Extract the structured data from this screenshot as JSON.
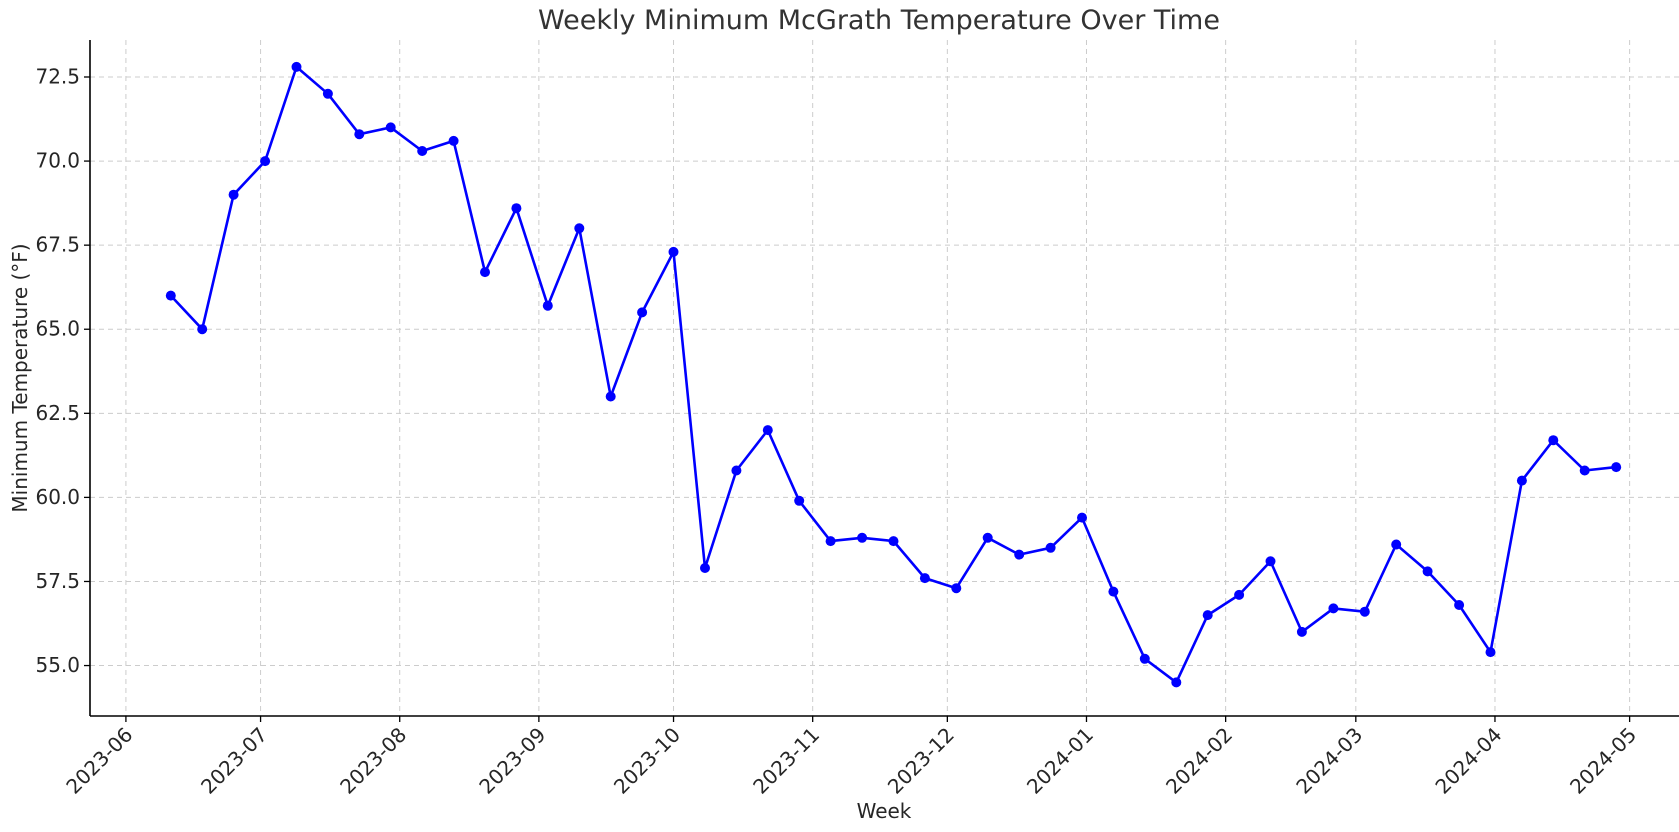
{
  "chart_data": {
    "type": "line",
    "title": "Weekly Minimum McGrath Temperature Over Time",
    "xlabel": "Week",
    "ylabel": "Minimum Temperature (°F)",
    "xlim": [
      "2023-05-24",
      "2024-05-12"
    ],
    "ylim": [
      53.5,
      73.6
    ],
    "grid": true,
    "legend": "none",
    "colors": {
      "series": "#0000ff",
      "grid": "#cccccc",
      "axes": "#000000"
    },
    "x_ticks": [
      "2023-06-01",
      "2023-07-01",
      "2023-08-01",
      "2023-09-01",
      "2023-10-01",
      "2023-11-01",
      "2023-12-01",
      "2024-01-01",
      "2024-02-01",
      "2024-03-01",
      "2024-04-01",
      "2024-05-01"
    ],
    "x_tick_labels": [
      "2023-06",
      "2023-07",
      "2023-08",
      "2023-09",
      "2023-10",
      "2023-11",
      "2023-12",
      "2024-01",
      "2024-02",
      "2024-03",
      "2024-04",
      "2024-05"
    ],
    "y_ticks": [
      55.0,
      57.5,
      60.0,
      62.5,
      65.0,
      67.5,
      70.0,
      72.5
    ],
    "y_tick_labels": [
      "55.0",
      "57.5",
      "60.0",
      "62.5",
      "65.0",
      "67.5",
      "70.0",
      "72.5"
    ],
    "series": [
      {
        "x": [
          "2023-06-11",
          "2023-06-18",
          "2023-06-25",
          "2023-07-02",
          "2023-07-09",
          "2023-07-16",
          "2023-07-23",
          "2023-07-30",
          "2023-08-06",
          "2023-08-13",
          "2023-08-20",
          "2023-08-27",
          "2023-09-03",
          "2023-09-10",
          "2023-09-17",
          "2023-09-24",
          "2023-10-01",
          "2023-10-08",
          "2023-10-15",
          "2023-10-22",
          "2023-10-29",
          "2023-11-05",
          "2023-11-12",
          "2023-11-19",
          "2023-11-26",
          "2023-12-03",
          "2023-12-10",
          "2023-12-17",
          "2023-12-24",
          "2023-12-31",
          "2024-01-07",
          "2024-01-14",
          "2024-01-21",
          "2024-01-28",
          "2024-02-04",
          "2024-02-11",
          "2024-02-18",
          "2024-02-25",
          "2024-03-03",
          "2024-03-10",
          "2024-03-17",
          "2024-03-24",
          "2024-03-31",
          "2024-04-07",
          "2024-04-14",
          "2024-04-21",
          "2024-04-28"
        ],
        "values": [
          66.0,
          65.0,
          69.0,
          70.0,
          72.8,
          72.0,
          70.8,
          71.0,
          70.3,
          70.6,
          66.7,
          68.6,
          65.7,
          68.0,
          63.0,
          65.5,
          67.3,
          57.9,
          60.8,
          62.0,
          59.9,
          58.7,
          58.8,
          58.7,
          57.6,
          57.3,
          58.8,
          58.3,
          58.5,
          59.4,
          57.2,
          55.2,
          54.5,
          56.5,
          57.1,
          58.1,
          56.0,
          56.7,
          56.6,
          58.6,
          57.8,
          56.8,
          55.4,
          60.5,
          61.7,
          60.8,
          60.9
        ]
      }
    ]
  }
}
